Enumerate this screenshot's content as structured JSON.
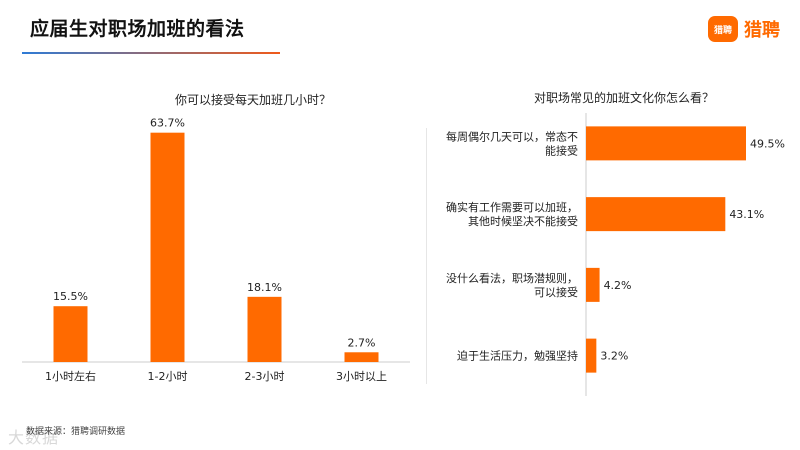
{
  "header": {
    "title": "应届生对职场加班的看法",
    "logo_badge": "猎聘",
    "logo_text": "猎聘"
  },
  "source": "数据来源：猎聘调研数据",
  "watermark": "大数据",
  "colors": {
    "bar": "#ff6a00",
    "axis": "#cccccc"
  },
  "chart_data": [
    {
      "type": "bar",
      "title": "你可以接受每天加班几小时？",
      "categories": [
        "1小时左右",
        "1-2小时",
        "2-3小时",
        "3小时以上"
      ],
      "values": [
        15.5,
        63.7,
        18.1,
        2.7
      ],
      "labels": [
        "15.5%",
        "63.7%",
        "18.1%",
        "2.7%"
      ],
      "ylim": [
        0,
        70
      ],
      "grid": false
    },
    {
      "type": "bar",
      "orientation": "horizontal",
      "title": "对职场常见的加班文化你怎么看？",
      "categories": [
        [
          "每周偶尔几天可以，常态不",
          "能接受"
        ],
        [
          "确实有工作需要可以加班，",
          "其他时候坚决不能接受"
        ],
        [
          "没什么看法，职场潜规则，",
          "可以接受"
        ],
        [
          "迫于生活压力，勉强坚持"
        ]
      ],
      "values": [
        49.5,
        43.1,
        4.2,
        3.2
      ],
      "labels": [
        "49.5%",
        "43.1%",
        "4.2%",
        "3.2%"
      ],
      "xlim": [
        0,
        49.5
      ],
      "grid": false
    }
  ]
}
